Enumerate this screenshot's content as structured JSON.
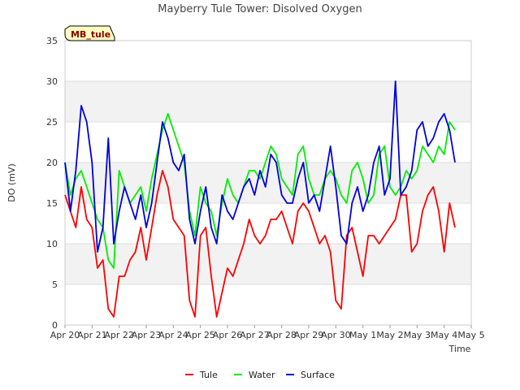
{
  "chart_data": {
    "type": "line",
    "title": "Mayberry Tule Tower: Disolved Oxygen",
    "xlabel": "Time",
    "ylabel": "DO (mV)",
    "badge": "MB_tule",
    "ylim": [
      0,
      35
    ],
    "y_ticks": [
      0,
      5,
      10,
      15,
      20,
      25,
      30,
      35
    ],
    "x_ticks": [
      "Apr 20",
      "Apr 21",
      "Apr 22",
      "Apr 23",
      "Apr 24",
      "Apr 25",
      "Apr 26",
      "Apr 27",
      "Apr 28",
      "Apr 29",
      "Apr 30",
      "May 1",
      "May 2",
      "May 3",
      "May 4",
      "May 5"
    ],
    "x_unit": "days since Apr 20",
    "legend_position": "bottom-center",
    "grid": true,
    "colors": {
      "band": "#f2f2f2",
      "grid": "#dddddd"
    },
    "series": [
      {
        "name": "Tule",
        "color": "#ff0000",
        "x": [
          0.0,
          0.2,
          0.4,
          0.6,
          0.8,
          1.0,
          1.2,
          1.4,
          1.6,
          1.8,
          2.0,
          2.2,
          2.4,
          2.6,
          2.8,
          3.0,
          3.2,
          3.4,
          3.6,
          3.8,
          4.0,
          4.2,
          4.4,
          4.6,
          4.8,
          5.0,
          5.2,
          5.4,
          5.6,
          5.8,
          6.0,
          6.2,
          6.4,
          6.6,
          6.8,
          7.0,
          7.2,
          7.4,
          7.6,
          7.8,
          8.0,
          8.2,
          8.4,
          8.6,
          8.8,
          9.0,
          9.2,
          9.4,
          9.6,
          9.8,
          10.0,
          10.2,
          10.4,
          10.6,
          10.8,
          11.0,
          11.2,
          11.4,
          11.6,
          11.8,
          12.0,
          12.2,
          12.4,
          12.6,
          12.8,
          13.0,
          13.2,
          13.4,
          13.6,
          13.8,
          14.0,
          14.2,
          14.4
        ],
        "y": [
          16,
          14,
          12,
          17,
          13,
          12,
          7,
          8,
          2,
          1,
          6,
          6,
          8,
          9,
          12,
          8,
          12,
          16,
          19,
          17,
          13,
          12,
          11,
          3,
          1,
          11,
          12,
          6,
          1,
          4,
          7,
          6,
          8,
          10,
          13,
          11,
          10,
          11,
          13,
          13,
          14,
          12,
          10,
          14,
          15,
          14,
          12,
          10,
          11,
          9,
          3,
          2,
          11,
          12,
          9,
          6,
          11,
          11,
          10,
          11,
          12,
          13,
          16,
          16,
          9,
          10,
          14,
          16,
          17,
          14,
          9,
          15,
          12
        ]
      },
      {
        "name": "Water",
        "color": "#00ee00",
        "x": [
          0.0,
          0.2,
          0.4,
          0.6,
          0.8,
          1.0,
          1.2,
          1.4,
          1.6,
          1.8,
          2.0,
          2.2,
          2.4,
          2.6,
          2.8,
          3.0,
          3.2,
          3.4,
          3.6,
          3.8,
          4.0,
          4.2,
          4.4,
          4.6,
          4.8,
          5.0,
          5.2,
          5.4,
          5.6,
          5.8,
          6.0,
          6.2,
          6.4,
          6.6,
          6.8,
          7.0,
          7.2,
          7.4,
          7.6,
          7.8,
          8.0,
          8.2,
          8.4,
          8.6,
          8.8,
          9.0,
          9.2,
          9.4,
          9.6,
          9.8,
          10.0,
          10.2,
          10.4,
          10.6,
          10.8,
          11.0,
          11.2,
          11.4,
          11.6,
          11.8,
          12.0,
          12.2,
          12.4,
          12.6,
          12.8,
          13.0,
          13.2,
          13.4,
          13.6,
          13.8,
          14.0,
          14.2,
          14.4
        ],
        "y": [
          20,
          16,
          18,
          19,
          17,
          15,
          13,
          12,
          8,
          7,
          19,
          17,
          15,
          16,
          17,
          14,
          18,
          21,
          24,
          26,
          24,
          22,
          20,
          14,
          11,
          17,
          15,
          14,
          11,
          15,
          18,
          16,
          15,
          17,
          19,
          19,
          18,
          20,
          22,
          21,
          18,
          17,
          16,
          21,
          22,
          18,
          16,
          16,
          18,
          19,
          18,
          16,
          15,
          19,
          20,
          18,
          15,
          16,
          21,
          22,
          17,
          16,
          17,
          19,
          18,
          19,
          22,
          21,
          20,
          22,
          21,
          25,
          24
        ]
      },
      {
        "name": "Surface",
        "color": "#0000dd",
        "x": [
          0.0,
          0.2,
          0.4,
          0.6,
          0.8,
          1.0,
          1.2,
          1.4,
          1.6,
          1.8,
          2.0,
          2.2,
          2.4,
          2.6,
          2.8,
          3.0,
          3.2,
          3.4,
          3.6,
          3.8,
          4.0,
          4.2,
          4.4,
          4.6,
          4.8,
          5.0,
          5.2,
          5.4,
          5.6,
          5.8,
          6.0,
          6.2,
          6.4,
          6.6,
          6.8,
          7.0,
          7.2,
          7.4,
          7.6,
          7.8,
          8.0,
          8.2,
          8.4,
          8.6,
          8.8,
          9.0,
          9.2,
          9.4,
          9.6,
          9.8,
          10.0,
          10.2,
          10.4,
          10.6,
          10.8,
          11.0,
          11.2,
          11.4,
          11.6,
          11.8,
          12.0,
          12.2,
          12.4,
          12.6,
          12.8,
          13.0,
          13.2,
          13.4,
          13.6,
          13.8,
          14.0,
          14.2,
          14.4
        ],
        "y": [
          20,
          14,
          19,
          27,
          25,
          20,
          9,
          12,
          23,
          10,
          14,
          17,
          15,
          13,
          16,
          12,
          15,
          20,
          25,
          23,
          20,
          19,
          21,
          13,
          10,
          14,
          17,
          12,
          10,
          16,
          14,
          13,
          15,
          17,
          18,
          16,
          19,
          17,
          21,
          20,
          16,
          15,
          15,
          18,
          20,
          15,
          16,
          14,
          18,
          22,
          17,
          11,
          10,
          15,
          17,
          14,
          16,
          20,
          22,
          16,
          18,
          30,
          16,
          17,
          19,
          24,
          25,
          22,
          23,
          25,
          26,
          24,
          20
        ]
      }
    ]
  }
}
